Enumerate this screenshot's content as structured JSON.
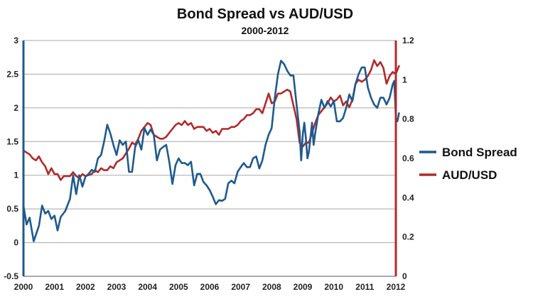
{
  "chart_data": {
    "type": "line",
    "title": "Bond Spread vs AUD/USD",
    "subtitle": "2000-2012",
    "xlabel": "",
    "ylabel": "",
    "ylabel_right": "",
    "xlim": [
      2000,
      2012
    ],
    "ylim": [
      -0.5,
      3
    ],
    "ylim_right": [
      0,
      1.2
    ],
    "x_ticks": [
      "2000",
      "2001",
      "2002",
      "2003",
      "2004",
      "2005",
      "2006",
      "2007",
      "2008",
      "2009",
      "2010",
      "2011",
      "2012"
    ],
    "y_ticks": [
      "-0.5",
      "0",
      "0.5",
      "1",
      "1.5",
      "2",
      "2.5",
      "3"
    ],
    "y_ticks_right": [
      "0",
      "0.2",
      "0.4",
      "0.6",
      "0.8",
      "1",
      "1.2"
    ],
    "grid": true,
    "legend_position": "right",
    "series": [
      {
        "name": "Bond Spread",
        "axis": "left",
        "color": "#1f5a8c",
        "points": [
          [
            2000.0,
            0.55
          ],
          [
            2000.1,
            0.27
          ],
          [
            2000.2,
            0.37
          ],
          [
            2000.33,
            0.02
          ],
          [
            2000.5,
            0.25
          ],
          [
            2000.6,
            0.55
          ],
          [
            2000.7,
            0.43
          ],
          [
            2000.8,
            0.47
          ],
          [
            2000.9,
            0.35
          ],
          [
            2001.0,
            0.4
          ],
          [
            2001.1,
            0.18
          ],
          [
            2001.2,
            0.38
          ],
          [
            2001.35,
            0.47
          ],
          [
            2001.5,
            0.65
          ],
          [
            2001.6,
            1.0
          ],
          [
            2001.7,
            0.72
          ],
          [
            2001.8,
            1.0
          ],
          [
            2001.9,
            0.83
          ],
          [
            2002.0,
            0.98
          ],
          [
            2002.1,
            1.02
          ],
          [
            2002.2,
            1.08
          ],
          [
            2002.3,
            1.05
          ],
          [
            2002.4,
            1.25
          ],
          [
            2002.5,
            1.3
          ],
          [
            2002.6,
            1.5
          ],
          [
            2002.7,
            1.75
          ],
          [
            2002.8,
            1.62
          ],
          [
            2002.9,
            1.45
          ],
          [
            2003.0,
            1.3
          ],
          [
            2003.1,
            1.52
          ],
          [
            2003.2,
            1.45
          ],
          [
            2003.3,
            1.5
          ],
          [
            2003.4,
            1.05
          ],
          [
            2003.5,
            1.05
          ],
          [
            2003.6,
            1.42
          ],
          [
            2003.7,
            1.52
          ],
          [
            2003.8,
            1.38
          ],
          [
            2003.9,
            1.7
          ],
          [
            2004.0,
            1.6
          ],
          [
            2004.1,
            1.68
          ],
          [
            2004.2,
            1.6
          ],
          [
            2004.3,
            1.22
          ],
          [
            2004.4,
            1.38
          ],
          [
            2004.5,
            1.42
          ],
          [
            2004.6,
            1.45
          ],
          [
            2004.7,
            1.2
          ],
          [
            2004.8,
            0.87
          ],
          [
            2004.9,
            1.15
          ],
          [
            2005.0,
            1.25
          ],
          [
            2005.1,
            1.18
          ],
          [
            2005.2,
            1.18
          ],
          [
            2005.3,
            1.15
          ],
          [
            2005.4,
            1.2
          ],
          [
            2005.5,
            0.85
          ],
          [
            2005.6,
            1.02
          ],
          [
            2005.7,
            1.02
          ],
          [
            2005.8,
            0.9
          ],
          [
            2005.9,
            0.85
          ],
          [
            2006.0,
            0.78
          ],
          [
            2006.1,
            0.68
          ],
          [
            2006.2,
            0.57
          ],
          [
            2006.3,
            0.63
          ],
          [
            2006.4,
            0.62
          ],
          [
            2006.5,
            0.65
          ],
          [
            2006.6,
            0.88
          ],
          [
            2006.7,
            0.92
          ],
          [
            2006.8,
            0.88
          ],
          [
            2006.9,
            1.05
          ],
          [
            2007.0,
            1.12
          ],
          [
            2007.1,
            1.18
          ],
          [
            2007.2,
            1.12
          ],
          [
            2007.3,
            1.12
          ],
          [
            2007.4,
            1.25
          ],
          [
            2007.5,
            1.28
          ],
          [
            2007.6,
            1.1
          ],
          [
            2007.7,
            1.22
          ],
          [
            2007.8,
            1.45
          ],
          [
            2007.9,
            1.6
          ],
          [
            2008.0,
            1.7
          ],
          [
            2008.1,
            2.15
          ],
          [
            2008.2,
            2.5
          ],
          [
            2008.3,
            2.7
          ],
          [
            2008.4,
            2.65
          ],
          [
            2008.5,
            2.55
          ],
          [
            2008.6,
            2.48
          ],
          [
            2008.7,
            2.48
          ],
          [
            2008.8,
            2.05
          ],
          [
            2008.9,
            1.65
          ],
          [
            2008.95,
            1.22
          ],
          [
            2009.0,
            1.6
          ],
          [
            2009.05,
            1.78
          ],
          [
            2009.1,
            1.55
          ],
          [
            2009.15,
            1.25
          ],
          [
            2009.2,
            1.35
          ],
          [
            2009.3,
            1.78
          ],
          [
            2009.35,
            1.45
          ],
          [
            2009.4,
            1.62
          ],
          [
            2009.5,
            1.9
          ],
          [
            2009.6,
            2.12
          ],
          [
            2009.7,
            2.0
          ],
          [
            2009.8,
            2.1
          ],
          [
            2009.9,
            2.02
          ],
          [
            2010.0,
            2.1
          ],
          [
            2010.1,
            1.8
          ],
          [
            2010.2,
            1.8
          ],
          [
            2010.3,
            1.85
          ],
          [
            2010.4,
            2.0
          ],
          [
            2010.5,
            2.2
          ],
          [
            2010.6,
            2.1
          ],
          [
            2010.7,
            2.35
          ],
          [
            2010.8,
            2.5
          ],
          [
            2010.9,
            2.6
          ],
          [
            2011.0,
            2.6
          ],
          [
            2011.1,
            2.3
          ],
          [
            2011.2,
            2.15
          ],
          [
            2011.3,
            2.05
          ],
          [
            2011.4,
            2.0
          ],
          [
            2011.5,
            2.15
          ],
          [
            2011.6,
            2.15
          ],
          [
            2011.7,
            2.05
          ],
          [
            2011.8,
            2.15
          ],
          [
            2011.9,
            2.35
          ],
          [
            2011.95,
            2.4
          ],
          [
            2012.0,
            1.85
          ],
          [
            2012.05,
            1.8
          ],
          [
            2012.1,
            1.92
          ]
        ]
      },
      {
        "name": "AUD/USD",
        "axis": "right",
        "color": "#b22a2a",
        "points": [
          [
            2000.0,
            0.64
          ],
          [
            2000.1,
            0.63
          ],
          [
            2000.2,
            0.62
          ],
          [
            2000.3,
            0.6
          ],
          [
            2000.4,
            0.59
          ],
          [
            2000.5,
            0.61
          ],
          [
            2000.6,
            0.58
          ],
          [
            2000.7,
            0.56
          ],
          [
            2000.8,
            0.52
          ],
          [
            2000.9,
            0.55
          ],
          [
            2001.0,
            0.52
          ],
          [
            2001.1,
            0.52
          ],
          [
            2001.2,
            0.49
          ],
          [
            2001.3,
            0.51
          ],
          [
            2001.4,
            0.51
          ],
          [
            2001.5,
            0.51
          ],
          [
            2001.6,
            0.53
          ],
          [
            2001.7,
            0.51
          ],
          [
            2001.8,
            0.5
          ],
          [
            2001.9,
            0.52
          ],
          [
            2002.0,
            0.51
          ],
          [
            2002.2,
            0.52
          ],
          [
            2002.3,
            0.54
          ],
          [
            2002.4,
            0.53
          ],
          [
            2002.5,
            0.55
          ],
          [
            2002.6,
            0.54
          ],
          [
            2002.7,
            0.54
          ],
          [
            2002.8,
            0.56
          ],
          [
            2002.9,
            0.55
          ],
          [
            2003.0,
            0.58
          ],
          [
            2003.2,
            0.6
          ],
          [
            2003.4,
            0.65
          ],
          [
            2003.5,
            0.68
          ],
          [
            2003.6,
            0.67
          ],
          [
            2003.7,
            0.7
          ],
          [
            2003.8,
            0.74
          ],
          [
            2003.9,
            0.76
          ],
          [
            2004.0,
            0.78
          ],
          [
            2004.1,
            0.77
          ],
          [
            2004.2,
            0.72
          ],
          [
            2004.3,
            0.71
          ],
          [
            2004.4,
            0.7
          ],
          [
            2004.5,
            0.7
          ],
          [
            2004.6,
            0.71
          ],
          [
            2004.7,
            0.73
          ],
          [
            2004.8,
            0.75
          ],
          [
            2004.9,
            0.77
          ],
          [
            2005.0,
            0.78
          ],
          [
            2005.1,
            0.77
          ],
          [
            2005.2,
            0.79
          ],
          [
            2005.3,
            0.77
          ],
          [
            2005.4,
            0.78
          ],
          [
            2005.5,
            0.75
          ],
          [
            2005.6,
            0.76
          ],
          [
            2005.7,
            0.76
          ],
          [
            2005.8,
            0.76
          ],
          [
            2005.9,
            0.74
          ],
          [
            2006.0,
            0.75
          ],
          [
            2006.1,
            0.73
          ],
          [
            2006.2,
            0.74
          ],
          [
            2006.3,
            0.72
          ],
          [
            2006.4,
            0.75
          ],
          [
            2006.5,
            0.75
          ],
          [
            2006.6,
            0.75
          ],
          [
            2006.7,
            0.76
          ],
          [
            2006.8,
            0.76
          ],
          [
            2006.9,
            0.77
          ],
          [
            2007.0,
            0.79
          ],
          [
            2007.1,
            0.8
          ],
          [
            2007.2,
            0.82
          ],
          [
            2007.3,
            0.82
          ],
          [
            2007.4,
            0.83
          ],
          [
            2007.5,
            0.85
          ],
          [
            2007.6,
            0.85
          ],
          [
            2007.7,
            0.83
          ],
          [
            2007.8,
            0.88
          ],
          [
            2007.9,
            0.93
          ],
          [
            2008.0,
            0.88
          ],
          [
            2008.1,
            0.89
          ],
          [
            2008.2,
            0.93
          ],
          [
            2008.3,
            0.93
          ],
          [
            2008.4,
            0.94
          ],
          [
            2008.5,
            0.95
          ],
          [
            2008.6,
            0.94
          ],
          [
            2008.7,
            0.87
          ],
          [
            2008.8,
            0.8
          ],
          [
            2008.9,
            0.68
          ],
          [
            2009.0,
            0.66
          ],
          [
            2009.1,
            0.68
          ],
          [
            2009.2,
            0.68
          ],
          [
            2009.3,
            0.73
          ],
          [
            2009.4,
            0.78
          ],
          [
            2009.5,
            0.82
          ],
          [
            2009.6,
            0.84
          ],
          [
            2009.7,
            0.86
          ],
          [
            2009.8,
            0.88
          ],
          [
            2009.9,
            0.91
          ],
          [
            2010.0,
            0.89
          ],
          [
            2010.1,
            0.9
          ],
          [
            2010.2,
            0.92
          ],
          [
            2010.3,
            0.87
          ],
          [
            2010.4,
            0.89
          ],
          [
            2010.5,
            0.86
          ],
          [
            2010.6,
            0.9
          ],
          [
            2010.7,
            0.98
          ],
          [
            2010.8,
            1.0
          ],
          [
            2010.9,
            0.99
          ],
          [
            2011.0,
            1.0
          ],
          [
            2011.1,
            1.02
          ],
          [
            2011.2,
            1.05
          ],
          [
            2011.3,
            1.1
          ],
          [
            2011.4,
            1.07
          ],
          [
            2011.5,
            1.09
          ],
          [
            2011.6,
            1.06
          ],
          [
            2011.7,
            0.98
          ],
          [
            2011.8,
            1.02
          ],
          [
            2011.9,
            1.04
          ],
          [
            2012.0,
            1.03
          ],
          [
            2012.1,
            1.07
          ]
        ]
      }
    ]
  }
}
